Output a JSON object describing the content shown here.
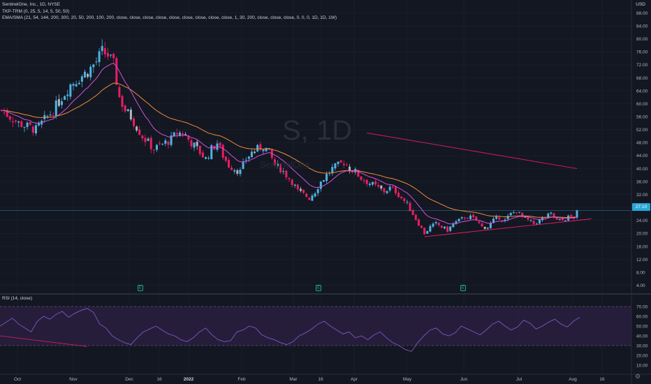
{
  "header": {
    "line1": "SentinelOne, Inc., 1D, NYSE",
    "line2": "TKP-TRM (0, 25, 5, 14, 5, 50, 50)",
    "line3": "EMA/SMA (21, 54, 144, 200, 300, 20, 50, 200, 100, 200, close, close, close, close, close, close, close, close, close, 1, 30, 200, close, close, close, 0, 0, 0, 1D, 1D, 1W)"
  },
  "watermark": {
    "symbol": "S, 1D",
    "name": "SentinelOne"
  },
  "currency": "USD",
  "last_price": "27.10",
  "rsi_title": "RSI (14, close)",
  "settings_icon": "gear-icon",
  "colors": {
    "background": "#131722",
    "up": "#4fb3e0",
    "down": "#e91e63",
    "neutral": "#b2b5be",
    "ema_fast": "#d050e0",
    "ema_slow": "#f08a3c",
    "sma_long": "#c2185b",
    "rsi_line": "#7e57c2",
    "rsi_band": "#2a1e3f",
    "trendline": "#e91e63"
  },
  "markers": [
    "E",
    "E",
    "E"
  ],
  "chart_data": [
    {
      "type": "candlestick",
      "title": "SentinelOne, Inc., 1D, NYSE",
      "ylabel": "USD",
      "y_ticks": [
        "88.00",
        "84.00",
        "80.00",
        "76.00",
        "72.00",
        "68.00",
        "64.00",
        "60.00",
        "56.00",
        "52.00",
        "48.00",
        "44.00",
        "40.00",
        "36.00",
        "32.00",
        "28.00",
        "24.00",
        "20.00",
        "16.00",
        "12.00",
        "8.00",
        "4.00"
      ],
      "x_ticks": [
        "Oct",
        "Nov",
        "Dec",
        "16",
        "2022",
        "Feb",
        "Mar",
        "16",
        "Apr",
        "May",
        "Jun",
        "Jul",
        "Aug",
        "16"
      ],
      "ylim": [
        2,
        92
      ],
      "close_path": [
        [
          0,
          58
        ],
        [
          3,
          56
        ],
        [
          6,
          54
        ],
        [
          9,
          53
        ],
        [
          12,
          52
        ],
        [
          15,
          55
        ],
        [
          18,
          58
        ],
        [
          21,
          62
        ],
        [
          24,
          66
        ],
        [
          27,
          68
        ],
        [
          30,
          70
        ],
        [
          33,
          73
        ],
        [
          35,
          76
        ],
        [
          37,
          75
        ],
        [
          39,
          72
        ],
        [
          41,
          62
        ],
        [
          43,
          58
        ],
        [
          45,
          56
        ],
        [
          47,
          53
        ],
        [
          49,
          50
        ],
        [
          51,
          48
        ],
        [
          53,
          46
        ],
        [
          55,
          47
        ],
        [
          57,
          48
        ],
        [
          59,
          49
        ],
        [
          61,
          51
        ],
        [
          63,
          51
        ],
        [
          65,
          49
        ],
        [
          67,
          47
        ],
        [
          69,
          45
        ],
        [
          71,
          43
        ],
        [
          73,
          46
        ],
        [
          75,
          48
        ],
        [
          77,
          44
        ],
        [
          79,
          41
        ],
        [
          81,
          40
        ],
        [
          83,
          39
        ],
        [
          85,
          43
        ],
        [
          87,
          45
        ],
        [
          89,
          46
        ],
        [
          91,
          47
        ],
        [
          93,
          45
        ],
        [
          95,
          41
        ],
        [
          97,
          40
        ],
        [
          99,
          38
        ],
        [
          101,
          36
        ],
        [
          103,
          33
        ],
        [
          105,
          32
        ],
        [
          107,
          31
        ],
        [
          109,
          33
        ],
        [
          111,
          36
        ],
        [
          113,
          38
        ],
        [
          115,
          40
        ],
        [
          117,
          41
        ],
        [
          119,
          42
        ],
        [
          121,
          40
        ],
        [
          123,
          39
        ],
        [
          125,
          37
        ],
        [
          127,
          36
        ],
        [
          129,
          35
        ],
        [
          131,
          34
        ],
        [
          133,
          33
        ],
        [
          135,
          34
        ],
        [
          137,
          33
        ],
        [
          139,
          31
        ],
        [
          141,
          29
        ],
        [
          143,
          26
        ],
        [
          145,
          23
        ],
        [
          147,
          20
        ],
        [
          149,
          22
        ],
        [
          151,
          23
        ],
        [
          153,
          22
        ],
        [
          155,
          21
        ],
        [
          157,
          23
        ],
        [
          159,
          24
        ],
        [
          161,
          25
        ],
        [
          163,
          25
        ],
        [
          165,
          24
        ],
        [
          167,
          22
        ],
        [
          169,
          22
        ],
        [
          171,
          24
        ],
        [
          173,
          25
        ],
        [
          175,
          24
        ],
        [
          177,
          26
        ],
        [
          179,
          27
        ],
        [
          181,
          25
        ],
        [
          183,
          24
        ],
        [
          185,
          23
        ],
        [
          187,
          24
        ],
        [
          189,
          25
        ],
        [
          191,
          26
        ],
        [
          193,
          24
        ],
        [
          195,
          24
        ],
        [
          197,
          25
        ],
        [
          199,
          25
        ],
        [
          200,
          27.1
        ]
      ],
      "last_value": 27.1,
      "overlays": [
        {
          "name": "ema_fast",
          "values_ref": "fast"
        },
        {
          "name": "ema_slow",
          "values_ref": "slow"
        },
        {
          "name": "sma_long",
          "start": [
            127,
            51
          ],
          "end": [
            200,
            40
          ]
        },
        {
          "name": "trendline",
          "start": [
            147,
            19
          ],
          "end": [
            205,
            24.5
          ]
        }
      ]
    },
    {
      "type": "line",
      "title": "RSI (14, close)",
      "y_ticks": [
        "70.00",
        "60.00",
        "50.00",
        "40.00",
        "30.00",
        "20.00",
        "10.00"
      ],
      "ylim": [
        5,
        75
      ],
      "bands": [
        30,
        70
      ],
      "values": [
        50,
        54,
        58,
        52,
        48,
        44,
        55,
        60,
        57,
        62,
        65,
        59,
        63,
        66,
        68,
        64,
        52,
        48,
        40,
        36,
        33,
        31,
        38,
        44,
        47,
        50,
        46,
        42,
        40,
        36,
        34,
        38,
        44,
        48,
        41,
        36,
        34,
        35,
        44,
        46,
        50,
        48,
        41,
        38,
        36,
        33,
        31,
        34,
        40,
        43,
        47,
        52,
        55,
        50,
        46,
        42,
        44,
        38,
        40,
        36,
        41,
        44,
        38,
        33,
        30,
        26,
        24,
        33,
        40,
        46,
        48,
        42,
        40,
        43,
        50,
        47,
        44,
        41,
        46,
        52,
        55,
        50,
        46,
        49,
        56,
        53,
        47,
        50,
        54,
        57,
        52,
        49,
        55,
        59
      ]
    }
  ]
}
